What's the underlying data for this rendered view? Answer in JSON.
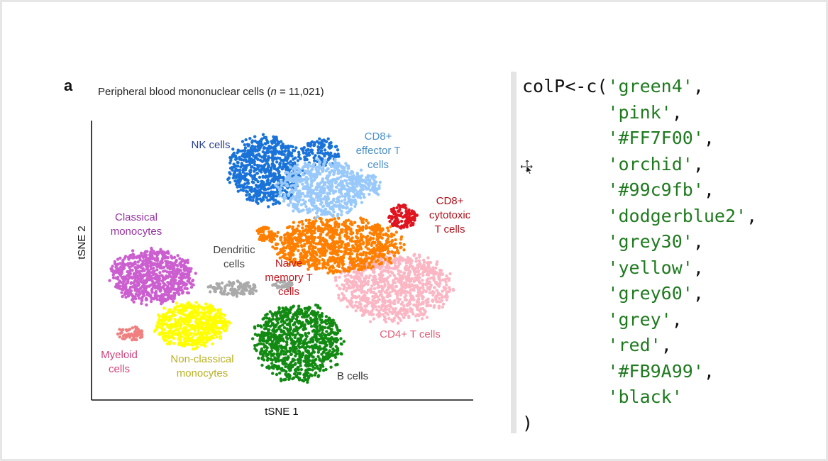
{
  "figure": {
    "panel_letter": "a",
    "title_prefix": "Peripheral blood mononuclear cells (",
    "title_n": "n",
    "title_suffix": " = 11,021)",
    "x_axis_label": "tSNE 1",
    "y_axis_label": "tSNE 2"
  },
  "clusters": [
    {
      "id": "nk",
      "lines": [
        "NK cells"
      ],
      "color": "#1a73d8",
      "label_color": "#2a3f8f"
    },
    {
      "id": "cd8eff",
      "lines": [
        "CD8+",
        "effector T",
        "cells"
      ],
      "color": "#99c9fb",
      "label_color": "#4a8fc8"
    },
    {
      "id": "cd8cyt",
      "lines": [
        "CD8+",
        "cytotoxic",
        "T cells"
      ],
      "color": "#e0141e",
      "label_color": "#b0121c"
    },
    {
      "id": "classical",
      "lines": [
        "Classical",
        "monocytes"
      ],
      "color": "#cc5fd0",
      "label_color": "#9433a0"
    },
    {
      "id": "dendritic",
      "lines": [
        "Dendritic",
        "cells"
      ],
      "color": "#aaaaaa",
      "label_color": "#444444"
    },
    {
      "id": "naive",
      "lines": [
        "Naive",
        "memory T",
        "cells"
      ],
      "color": "#ff7f00",
      "label_color": "#c0161e"
    },
    {
      "id": "cd4",
      "lines": [
        "CD4+ T cells"
      ],
      "color": "#fbb6c4",
      "label_color": "#e0607a"
    },
    {
      "id": "myeloid",
      "lines": [
        "Myeloid",
        "cells"
      ],
      "color": "#f08080",
      "label_color": "#d0427a"
    },
    {
      "id": "nonclassical",
      "lines": [
        "Non-classical",
        "monocytes"
      ],
      "color": "#ffff00",
      "label_color": "#b8b024"
    },
    {
      "id": "bcells",
      "lines": [
        "B cells"
      ],
      "color": "#138a13",
      "label_color": "#333333"
    }
  ],
  "code": {
    "assignment": "colP<-c(",
    "values": [
      "'green4'",
      "'pink'",
      "'#FF7F00'",
      "'orchid'",
      "'#99c9fb'",
      "'dodgerblue2'",
      "'grey30'",
      "'yellow'",
      "'grey60'",
      "'grey'",
      "'red'",
      "'#FB9A99'",
      "'black'"
    ],
    "separator": ",",
    "closing": ")"
  },
  "icons": {
    "cursor": "move-cursor-icon"
  }
}
